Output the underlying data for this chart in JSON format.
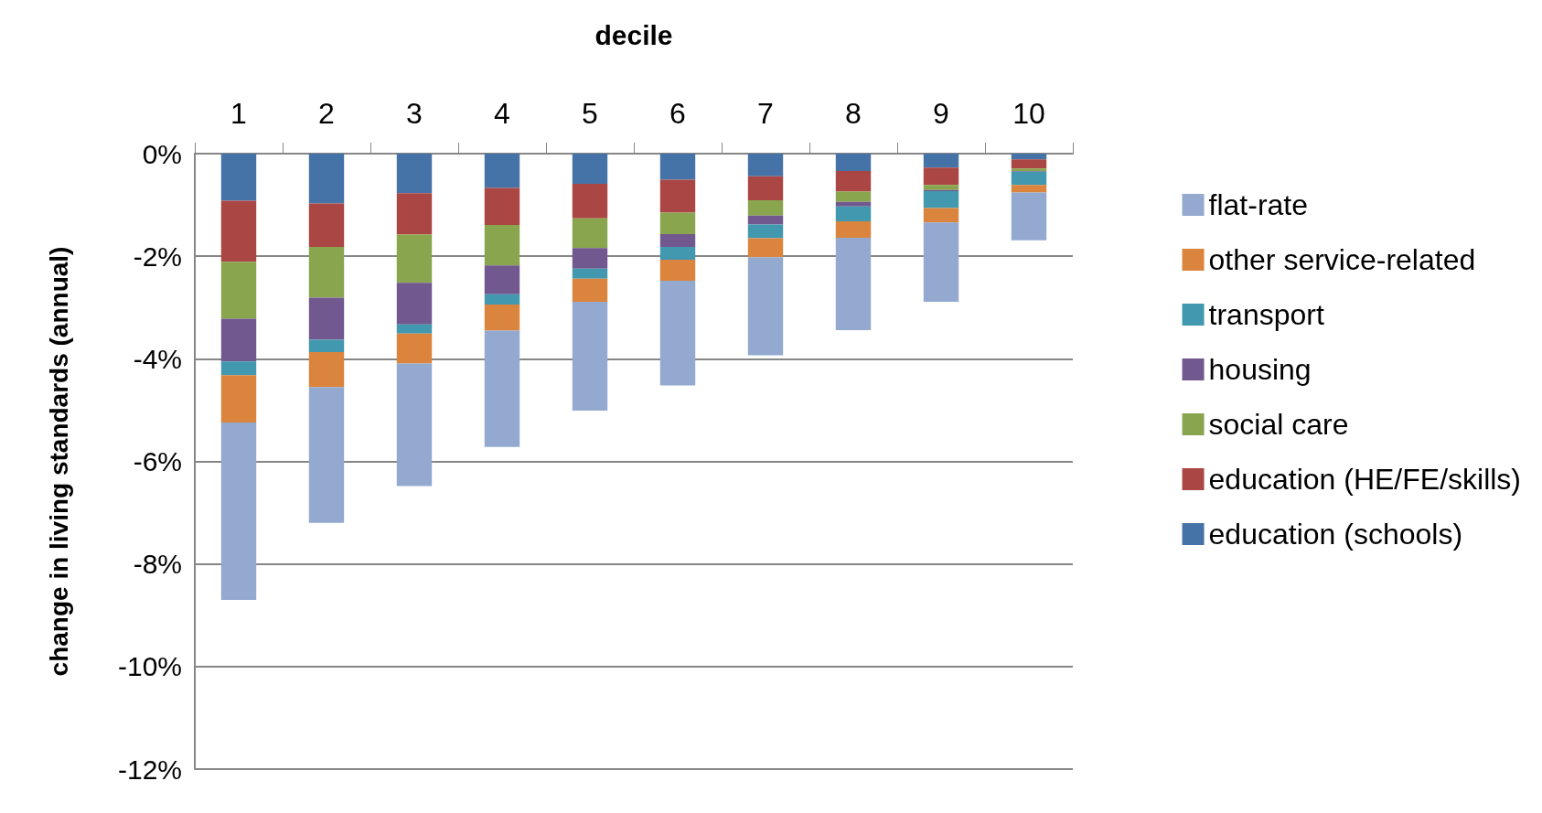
{
  "chart_data": {
    "type": "bar",
    "stacked": true,
    "xlabel": "decile",
    "ylabel": "change in living standards (annual)",
    "categories": [
      "1",
      "2",
      "3",
      "4",
      "5",
      "6",
      "7",
      "8",
      "9",
      "10"
    ],
    "series": [
      {
        "name": "education (schools)",
        "color": "#4572a7",
        "values": [
          -0.92,
          -0.97,
          -0.77,
          -0.67,
          -0.59,
          -0.51,
          -0.44,
          -0.34,
          -0.27,
          -0.11
        ]
      },
      {
        "name": "education (HE/FE/skills)",
        "color": "#aa4643",
        "values": [
          -1.19,
          -0.85,
          -0.81,
          -0.72,
          -0.67,
          -0.64,
          -0.47,
          -0.4,
          -0.34,
          -0.18
        ]
      },
      {
        "name": "social care",
        "color": "#89a54e",
        "values": [
          -1.11,
          -0.99,
          -0.94,
          -0.79,
          -0.58,
          -0.42,
          -0.3,
          -0.2,
          -0.1,
          -0.05
        ]
      },
      {
        "name": "housing",
        "color": "#71588f",
        "values": [
          -0.83,
          -0.82,
          -0.81,
          -0.56,
          -0.4,
          -0.25,
          -0.17,
          -0.09,
          -0.02,
          -0.01
        ]
      },
      {
        "name": "transport",
        "color": "#4198af",
        "values": [
          -0.27,
          -0.24,
          -0.18,
          -0.2,
          -0.2,
          -0.25,
          -0.27,
          -0.29,
          -0.33,
          -0.26
        ]
      },
      {
        "name": "other service-related",
        "color": "#db843d",
        "values": [
          -0.92,
          -0.68,
          -0.58,
          -0.51,
          -0.45,
          -0.41,
          -0.37,
          -0.32,
          -0.28,
          -0.15
        ]
      },
      {
        "name": "flat-rate",
        "color": "#93a9cf",
        "values": [
          -3.46,
          -2.65,
          -2.39,
          -2.27,
          -2.12,
          -2.04,
          -1.91,
          -1.8,
          -1.55,
          -0.93
        ]
      }
    ],
    "ylim": [
      -12,
      0
    ],
    "yticks": [
      {
        "value": -12,
        "label": "-12%"
      },
      {
        "value": -10,
        "label": "-10%"
      },
      {
        "value": -8,
        "label": "-8%"
      },
      {
        "value": -6,
        "label": "-6%"
      },
      {
        "value": -4,
        "label": "-4%"
      },
      {
        "value": -2,
        "label": "-2%"
      },
      {
        "value": 0,
        "label": "0%"
      }
    ],
    "grid": "y",
    "legend": "right"
  }
}
